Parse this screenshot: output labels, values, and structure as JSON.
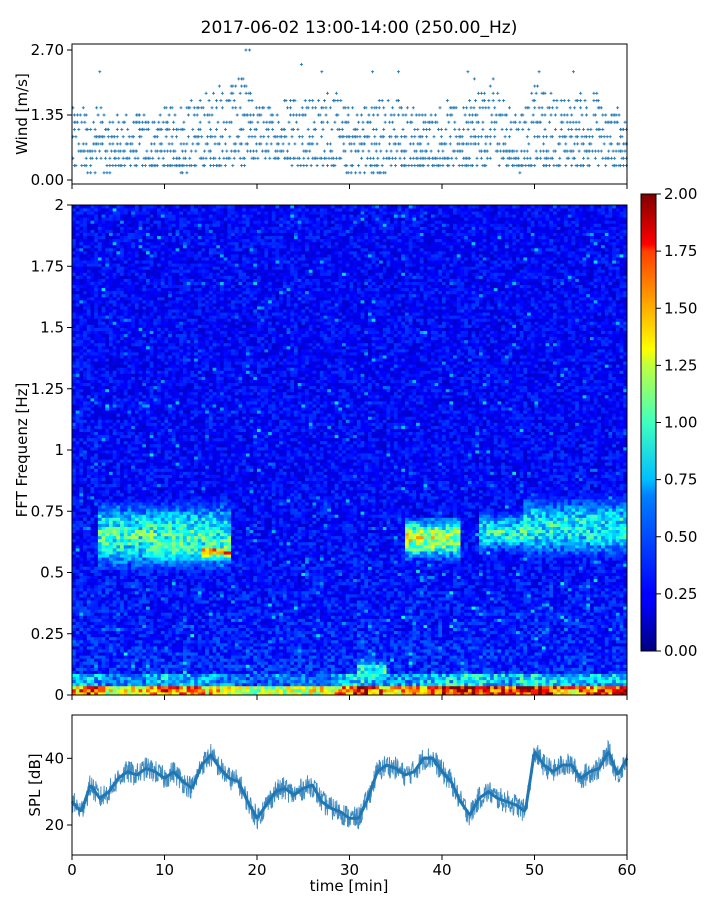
{
  "figure": {
    "title": "2017-06-02 13:00-14:00 (250.00_Hz)"
  },
  "chart_data": [
    {
      "type": "scatter",
      "panel": "wind",
      "ylabel": "Wind [m/s]",
      "ylim": [
        0.0,
        2.7
      ],
      "yticks": [
        0.0,
        1.35,
        2.7
      ],
      "ytick_labels": [
        "0.00",
        "1.35",
        "2.70"
      ],
      "xlim": [
        0,
        60
      ],
      "color": "#1f77b4",
      "marker": "+",
      "quantization_step": 0.15,
      "series": [
        {
          "x_min": [
            0,
            2,
            4,
            6,
            8,
            10,
            12,
            14,
            16,
            18,
            20,
            22,
            24,
            26,
            28,
            30,
            32,
            34,
            36,
            38,
            40,
            42,
            44,
            46,
            48,
            50,
            52,
            54,
            56,
            58
          ],
          "typical_min": [
            0.15,
            0.15,
            0.15,
            0.3,
            0.3,
            0.3,
            0.15,
            0.3,
            0.3,
            0.3,
            0.45,
            0.45,
            0.3,
            0.3,
            0.3,
            0.15,
            0.15,
            0.15,
            0.3,
            0.3,
            0.3,
            0.3,
            0.3,
            0.3,
            0.15,
            0.3,
            0.3,
            0.3,
            0.3,
            0.3
          ],
          "typical_max": [
            1.5,
            1.65,
            1.35,
            1.35,
            1.35,
            1.5,
            1.65,
            1.8,
            1.95,
            2.25,
            1.65,
            1.5,
            1.95,
            1.65,
            1.95,
            1.5,
            1.65,
            1.8,
            1.65,
            1.35,
            1.65,
            1.5,
            1.95,
            2.1,
            1.35,
            1.95,
            1.8,
            1.65,
            1.95,
            1.5
          ],
          "peaks": [
            [
              3.0,
              2.25
            ],
            [
              18.8,
              2.7
            ],
            [
              19.2,
              2.7
            ],
            [
              24.8,
              2.4
            ],
            [
              27,
              2.25
            ],
            [
              32.5,
              2.25
            ],
            [
              35.3,
              2.25
            ],
            [
              42.8,
              2.25
            ],
            [
              43.5,
              2.1
            ],
            [
              50.5,
              2.25
            ],
            [
              54.2,
              2.25
            ]
          ]
        }
      ]
    },
    {
      "type": "heatmap",
      "panel": "spectrogram",
      "ylabel": "FFT Frequenz [Hz]",
      "ylim": [
        0,
        2
      ],
      "yticks": [
        0,
        0.25,
        0.5,
        0.75,
        1,
        1.25,
        1.5,
        1.75,
        2
      ],
      "ytick_labels": [
        "0",
        "0.25",
        "0.5",
        "0.75",
        "1",
        "1.25",
        "1.5",
        "1.75",
        "2"
      ],
      "xlim": [
        0,
        60
      ],
      "colormap": "jet",
      "colorbar": {
        "range": [
          0.0,
          2.0
        ],
        "ticks": [
          0.0,
          0.25,
          0.5,
          0.75,
          1.0,
          1.25,
          1.5,
          1.75,
          2.0
        ],
        "tick_labels": [
          "0.00",
          "0.25",
          "0.50",
          "0.75",
          "1.00",
          "1.25",
          "1.50",
          "1.75",
          "2.00"
        ]
      },
      "background_level": 0.25,
      "low_freq_band": {
        "freq_max_hz": 0.04,
        "level_by_time": [
          [
            0,
            1.4
          ],
          [
            2,
            1.8
          ],
          [
            4,
            1.2
          ],
          [
            8,
            1.4
          ],
          [
            10,
            1.7
          ],
          [
            14,
            1.5
          ],
          [
            20,
            1.1
          ],
          [
            25,
            1.2
          ],
          [
            28,
            1.3
          ],
          [
            31,
            1.9
          ],
          [
            35,
            1.4
          ],
          [
            40,
            1.8
          ],
          [
            43,
            1.9
          ],
          [
            47,
            1.6
          ],
          [
            50,
            2.0
          ],
          [
            54,
            1.5
          ],
          [
            58,
            1.7
          ]
        ]
      },
      "features": [
        {
          "t_start": 3,
          "t_end": 17,
          "f_low": 0.5,
          "f_high": 0.8,
          "peak_level": 1.0
        },
        {
          "t_start": 8,
          "t_end": 16,
          "f_low": 0.52,
          "f_high": 0.67,
          "peak_level": 0.9
        },
        {
          "t_start": 14,
          "t_end": 17,
          "f_low": 0.55,
          "f_high": 0.62,
          "peak_level": 1.6
        },
        {
          "t_start": 36,
          "t_end": 42,
          "f_low": 0.55,
          "f_high": 0.73,
          "peak_level": 1.3
        },
        {
          "t_start": 44,
          "t_end": 49,
          "f_low": 0.58,
          "f_high": 0.75,
          "peak_level": 0.95
        },
        {
          "t_start": 49,
          "t_end": 60,
          "f_low": 0.55,
          "f_high": 0.82,
          "peak_level": 0.9
        },
        {
          "t_start": 31,
          "t_end": 34,
          "f_low": 0.05,
          "f_high": 0.15,
          "peak_level": 1.0
        }
      ]
    },
    {
      "type": "line",
      "panel": "spl",
      "ylabel": "SPL [dB]",
      "ylim": [
        11,
        53
      ],
      "yticks": [
        20,
        40
      ],
      "ytick_labels": [
        "20",
        "40"
      ],
      "xlabel": "time [min]",
      "xlim": [
        0,
        60
      ],
      "xticks": [
        0,
        10,
        20,
        30,
        40,
        50,
        60
      ],
      "xtick_labels": [
        "0",
        "10",
        "20",
        "30",
        "40",
        "50",
        "60"
      ],
      "color": "#1f77b4",
      "series": [
        {
          "x": [
            0,
            1,
            2,
            3,
            4,
            5,
            6,
            7,
            8,
            9,
            10,
            11,
            12,
            13,
            14,
            15,
            16,
            17,
            18,
            19,
            20,
            21,
            22,
            23,
            24,
            25,
            26,
            27,
            28,
            29,
            30,
            31,
            32,
            33,
            34,
            35,
            36,
            37,
            38,
            39,
            40,
            41,
            42,
            43,
            44,
            45,
            46,
            47,
            48,
            49,
            50,
            51,
            52,
            53,
            54,
            55,
            56,
            57,
            58,
            59,
            60
          ],
          "y": [
            27,
            24,
            32,
            28,
            30,
            34,
            36,
            35,
            37,
            36,
            34,
            36,
            33,
            31,
            38,
            41,
            37,
            34,
            33,
            27,
            22,
            26,
            30,
            31,
            29,
            31,
            32,
            27,
            25,
            24,
            22,
            22,
            28,
            36,
            38,
            37,
            35,
            36,
            40,
            40,
            36,
            33,
            27,
            23,
            28,
            30,
            28,
            27,
            26,
            24,
            42,
            38,
            36,
            38,
            38,
            34,
            36,
            37,
            42,
            35,
            40
          ],
          "envelope": 3.5
        }
      ]
    }
  ]
}
